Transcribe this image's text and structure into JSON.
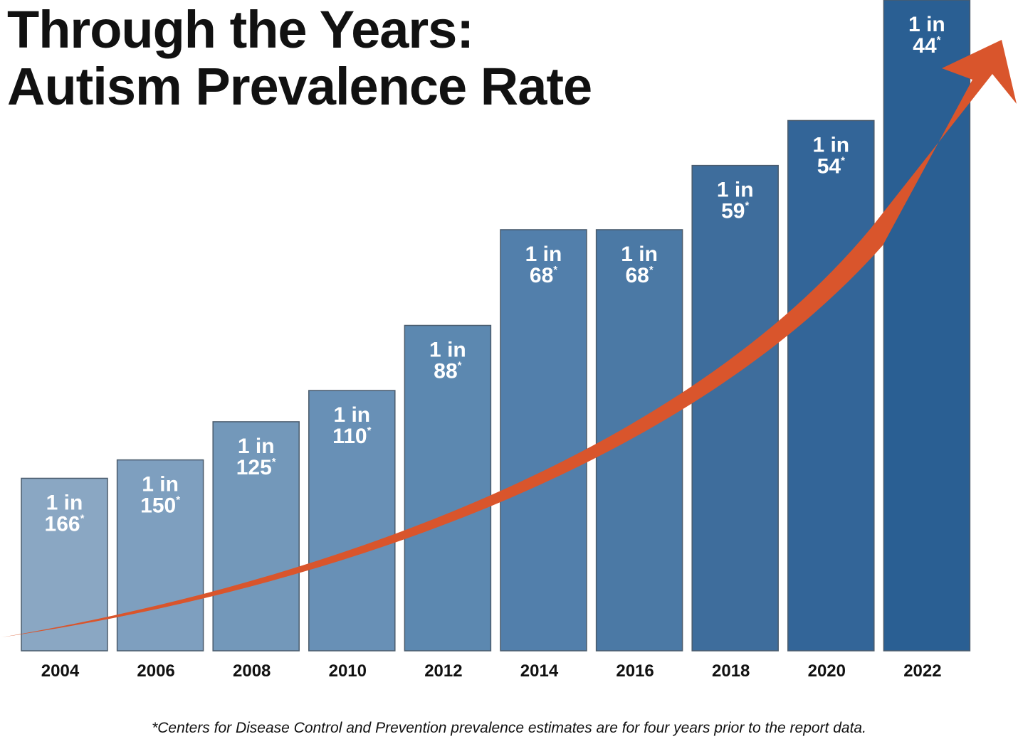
{
  "chart_data": {
    "type": "bar",
    "title_line1": "Through the Years:",
    "title_line2": "Autism Prevalence Rate",
    "categories": [
      "2004",
      "2006",
      "2008",
      "2010",
      "2012",
      "2014",
      "2016",
      "2018",
      "2020",
      "2022"
    ],
    "series": [
      {
        "values": [
          166,
          150,
          125,
          110,
          88,
          68,
          68,
          59,
          54,
          44
        ],
        "labels": [
          {
            "prefix": "1 in",
            "number": "166",
            "mark": "*"
          },
          {
            "prefix": "1 in",
            "number": "150",
            "mark": "*"
          },
          {
            "prefix": "1 in",
            "number": "125",
            "mark": "*"
          },
          {
            "prefix": "1 in",
            "number": "110",
            "mark": "*"
          },
          {
            "prefix": "1 in",
            "number": "88",
            "mark": "*"
          },
          {
            "prefix": "1 in",
            "number": "68",
            "mark": "*"
          },
          {
            "prefix": "1 in",
            "number": "68",
            "mark": "*"
          },
          {
            "prefix": "1 in",
            "number": "59",
            "mark": "*"
          },
          {
            "prefix": "1 in",
            "number": "54",
            "mark": "*"
          },
          {
            "prefix": "1 in",
            "number": "44",
            "mark": "*"
          }
        ]
      }
    ],
    "xlabel": "",
    "ylabel": "",
    "grid": false,
    "legend": "none",
    "footnote": "*Centers for Disease Control and Prevention prevalence estimates are for four years prior to the report data.",
    "colors": {
      "bars": [
        "#8aa7c3",
        "#7e9fbf",
        "#7398ba",
        "#6890b6",
        "#5c88b0",
        "#527fab",
        "#4b79a5",
        "#3e6d9c",
        "#336598",
        "#2a5f93"
      ],
      "bar_border": "#4a5b6c",
      "trend_arrow": "#d9552c",
      "text": "#111111",
      "label_text": "#ffffff"
    },
    "decorations": [
      "upward-trend-arrow"
    ]
  }
}
